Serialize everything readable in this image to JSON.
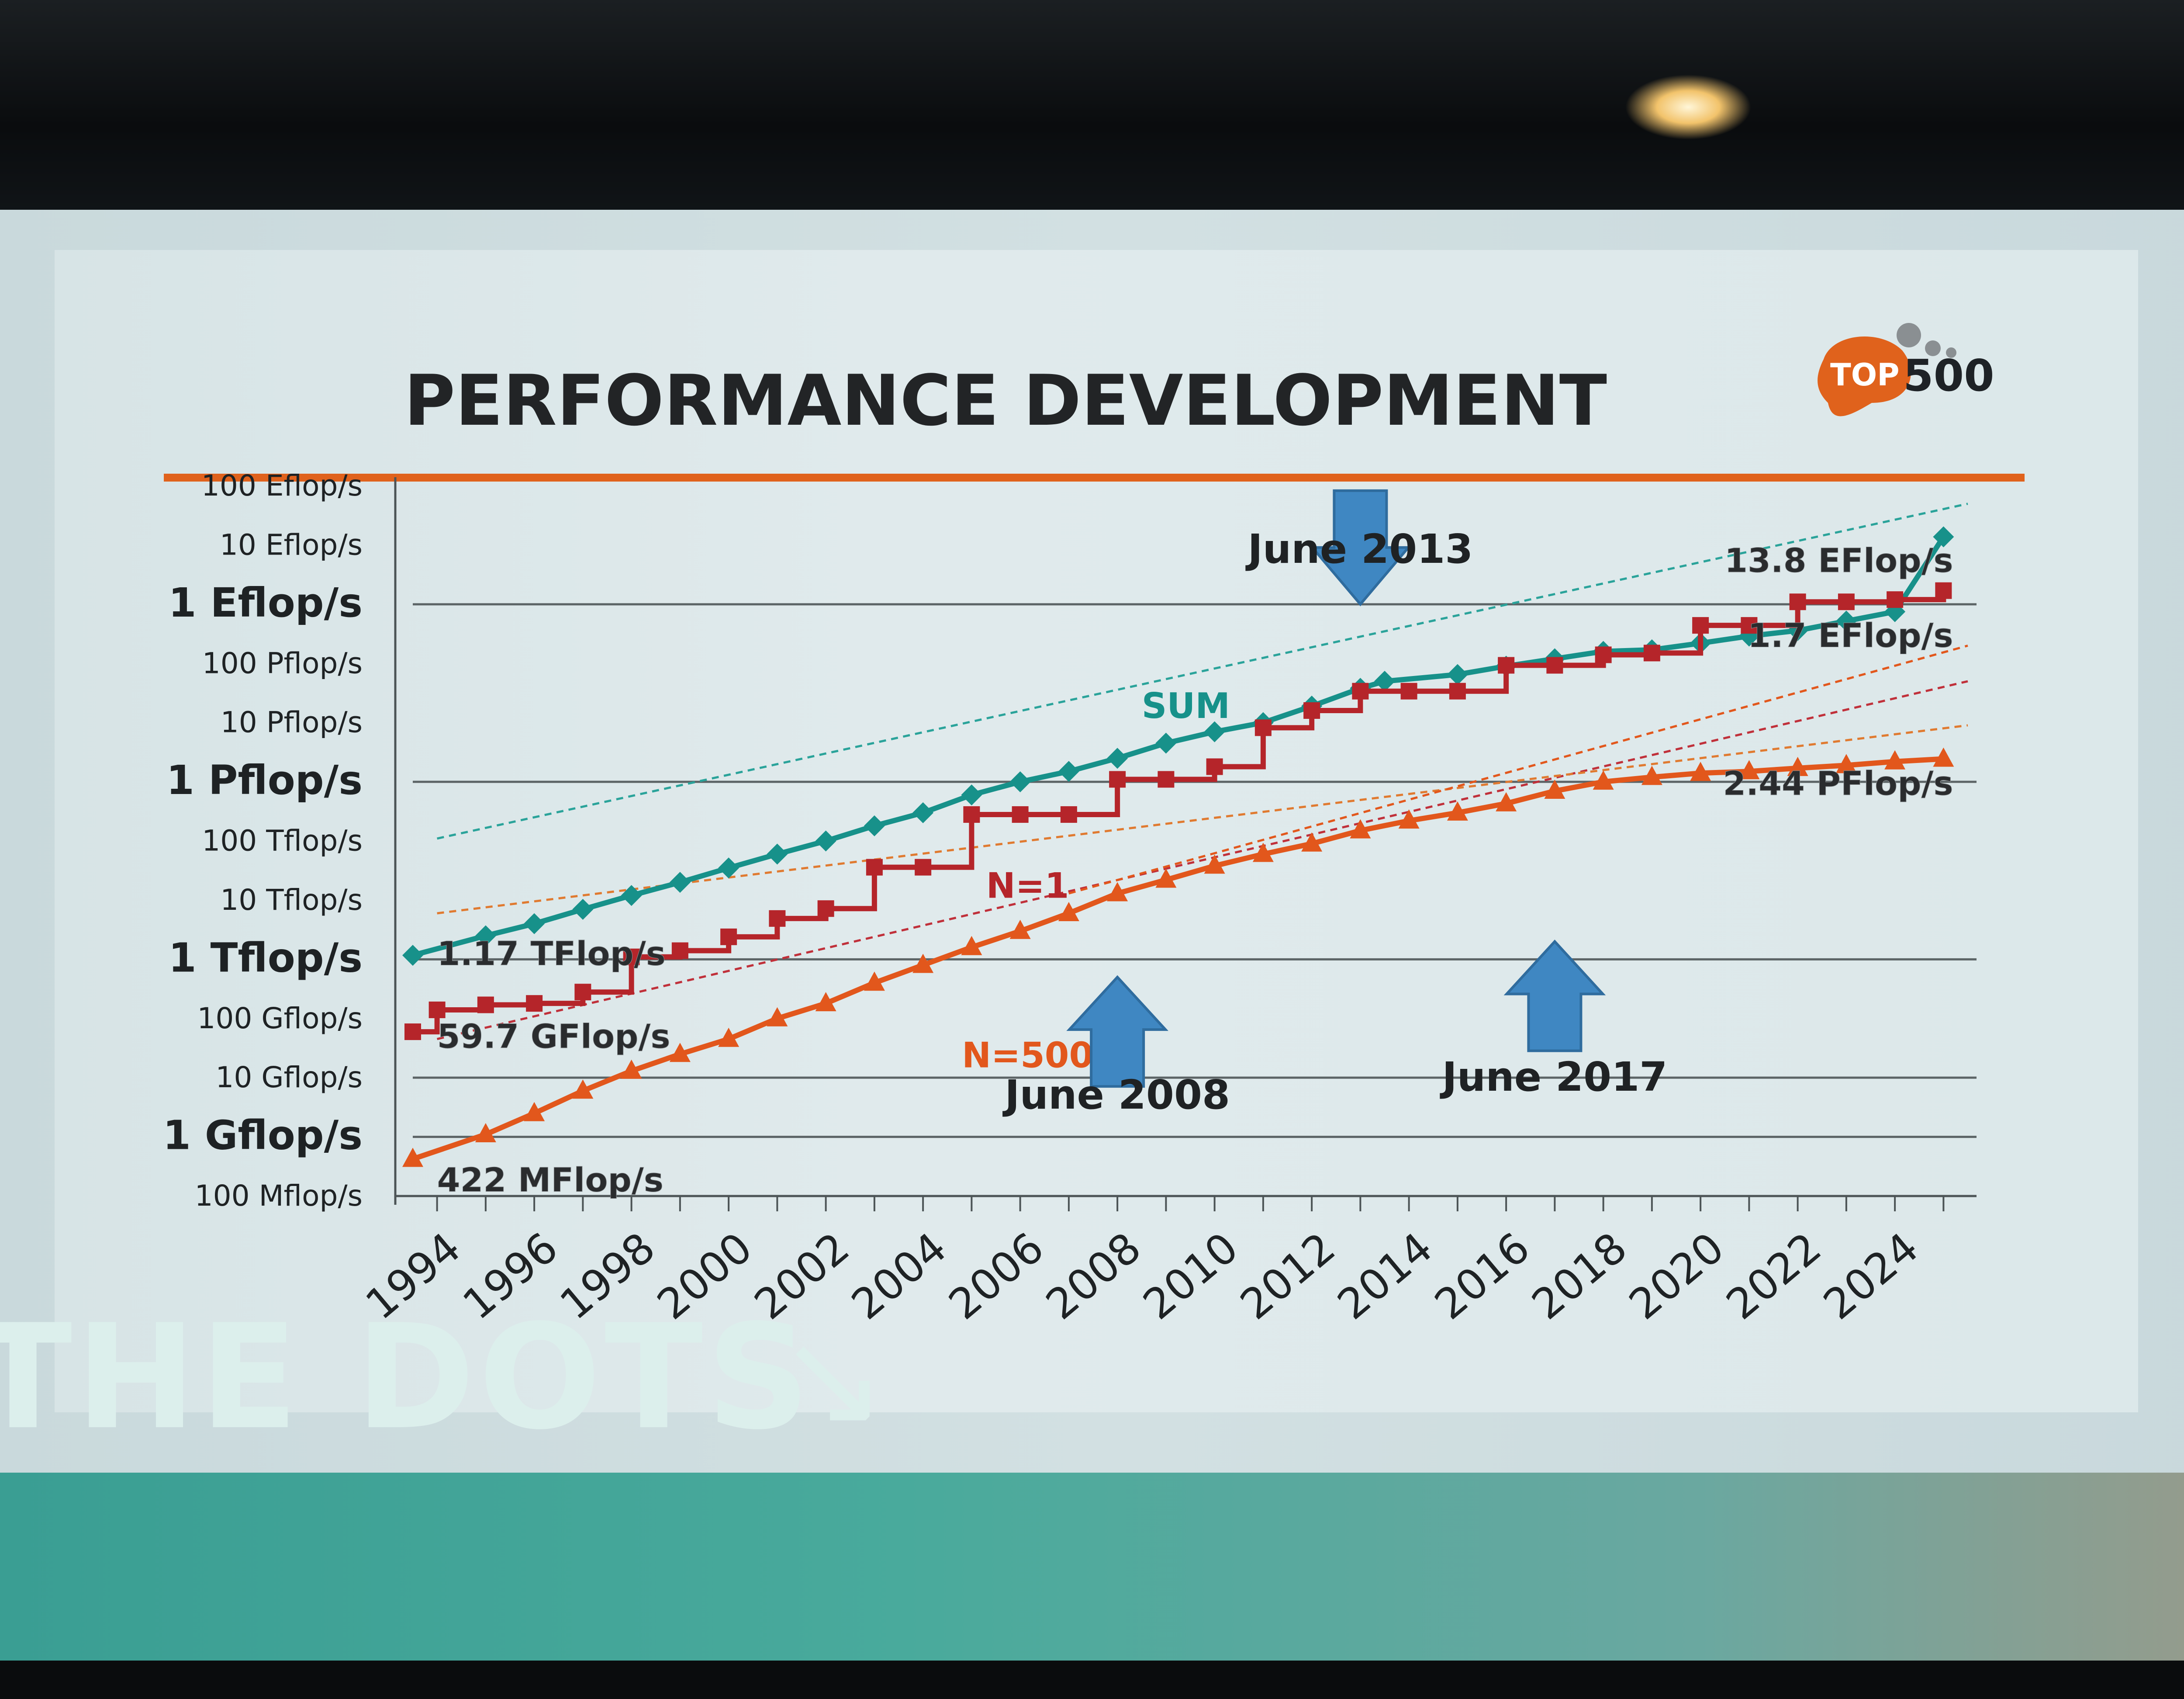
{
  "slide": {
    "title": "PERFORMANCE DEVELOPMENT",
    "logo": {
      "prefix": "TOP",
      "suffix": "500",
      "color": "#e0621c"
    },
    "accent_rule_color": "#e0621c"
  },
  "band": {
    "text": "THE DOTS",
    "arrow": "↘"
  },
  "chart_data": {
    "type": "line",
    "title": "PERFORMANCE DEVELOPMENT",
    "xlabel": "",
    "ylabel": "",
    "y_scale": "log",
    "ylim": [
      "100 Mflop/s",
      "100 Eflop/s"
    ],
    "xlim": [
      1993.5,
      2025.5
    ],
    "grid": "horizontal",
    "x_ticks": [
      "1994",
      "1996",
      "1998",
      "2000",
      "2002",
      "2004",
      "2006",
      "2008",
      "2010",
      "2012",
      "2014",
      "2016",
      "2018",
      "2020",
      "2022",
      "2024"
    ],
    "y_ticks": [
      {
        "label": "100 Mflop/s",
        "value": 100000000.0,
        "bold": false
      },
      {
        "label": "1 Gflop/s",
        "value": 1000000000.0,
        "bold": true
      },
      {
        "label": "10 Gflop/s",
        "value": 10000000000.0,
        "bold": false
      },
      {
        "label": "100 Gflop/s",
        "value": 100000000000.0,
        "bold": false
      },
      {
        "label": "1 Tflop/s",
        "value": 1000000000000.0,
        "bold": true
      },
      {
        "label": "10 Tflop/s",
        "value": 10000000000000.0,
        "bold": false
      },
      {
        "label": "100 Tflop/s",
        "value": 100000000000000.0,
        "bold": false
      },
      {
        "label": "1 Pflop/s",
        "value": 1000000000000000.0,
        "bold": true
      },
      {
        "label": "10 Pflop/s",
        "value": 1e+16,
        "bold": false
      },
      {
        "label": "100 Pflop/s",
        "value": 1e+17,
        "bold": false
      },
      {
        "label": "1 Eflop/s",
        "value": 1e+18,
        "bold": true
      },
      {
        "label": "10 Eflop/s",
        "value": 1e+19,
        "bold": false
      },
      {
        "label": "100 Eflop/s",
        "value": 1e+20,
        "bold": false
      }
    ],
    "series": [
      {
        "name": "SUM",
        "color": "#17918a",
        "marker": "diamond",
        "unit": "flop/s",
        "x": [
          1993.5,
          1995,
          1996,
          1997,
          1998,
          1999,
          2000,
          2001,
          2002,
          2003,
          2004,
          2005,
          2006,
          2007,
          2008,
          2009,
          2010,
          2011,
          2012,
          2013,
          2013.5,
          2015,
          2016,
          2017,
          2018,
          2019,
          2020,
          2021,
          2022,
          2023,
          2024,
          2025
        ],
        "y": [
          1170000000000.0,
          2500000000000.0,
          4000000000000.0,
          7000000000000.0,
          12000000000000.0,
          20000000000000.0,
          35000000000000.0,
          60000000000000.0,
          100000000000000.0,
          180000000000000.0,
          300000000000000.0,
          600000000000000.0,
          1000000000000000.0,
          1500000000000000.0,
          2500000000000000.0,
          4500000000000000.0,
          7000000000000000.0,
          1e+16,
          1.9e+16,
          3.8e+16,
          5e+16,
          6.5e+16,
          9e+16,
          1.2e+17,
          1.6e+17,
          1.7e+17,
          2.2e+17,
          2.9e+17,
          3.6e+17,
          5.2e+17,
          7.5e+17,
          1.38e+19
        ]
      },
      {
        "name": "N=1",
        "color": "#b5252a",
        "marker": "square",
        "unit": "flop/s",
        "x": [
          1993.5,
          1994,
          1995,
          1996,
          1997,
          1998,
          1999,
          2000,
          2001,
          2002,
          2003,
          2004,
          2005,
          2006,
          2007,
          2008,
          2009,
          2010,
          2011,
          2012,
          2013,
          2014,
          2015,
          2016,
          2017,
          2018,
          2019,
          2020,
          2021,
          2022,
          2023,
          2024,
          2025
        ],
        "y": [
          59700000000.0,
          140000000000.0,
          170000000000.0,
          180000000000.0,
          280000000000.0,
          1100000000000.0,
          1400000000000.0,
          2400000000000.0,
          4900000000000.0,
          7200000000000.0,
          36000000000000.0,
          36000000000000.0,
          280000000000000.0,
          280000000000000.0,
          280000000000000.0,
          1100000000000000.0,
          1100000000000000.0,
          1800000000000000.0,
          8200000000000000.0,
          1.6e+16,
          3.4e+16,
          3.4e+16,
          3.4e+16,
          9.3e+16,
          9.3e+16,
          1.4e+17,
          1.5e+17,
          4.4e+17,
          4.4e+17,
          1.1e+18,
          1.1e+18,
          1.2e+18,
          1.7e+18
        ]
      },
      {
        "name": "N=500",
        "color": "#e2571c",
        "marker": "triangle",
        "unit": "flop/s",
        "x": [
          1993.5,
          1995,
          1996,
          1997,
          1998,
          1999,
          2000,
          2001,
          2002,
          2003,
          2004,
          2005,
          2006,
          2007,
          2008,
          2009,
          2010,
          2011,
          2012,
          2013,
          2014,
          2015,
          2016,
          2017,
          2018,
          2019,
          2020,
          2021,
          2022,
          2023,
          2024,
          2025
        ],
        "y": [
          422000000.0,
          1100000000.0,
          2500000000.0,
          6000000000.0,
          13000000000.0,
          25000000000.0,
          45000000000.0,
          100000000000.0,
          180000000000.0,
          400000000000.0,
          800000000000.0,
          1600000000000.0,
          3000000000000.0,
          6000000000000.0,
          13000000000000.0,
          22000000000000.0,
          38000000000000.0,
          60000000000000.0,
          90000000000000.0,
          150000000000000.0,
          220000000000000.0,
          300000000000000.0,
          430000000000000.0,
          700000000000000.0,
          1000000000000000.0,
          1200000000000000.0,
          1400000000000000.0,
          1500000000000000.0,
          1700000000000000.0,
          1900000000000000.0,
          2200000000000000.0,
          2440000000000000.0
        ]
      }
    ],
    "trend_lines": [
      {
        "series": "SUM",
        "color": "#2aa39a",
        "from": [
          1994,
          110000000000000.0
        ],
        "to": [
          2025.5,
          5e+19
        ]
      },
      {
        "series": "N=1",
        "color": "#c0303a",
        "from": [
          1994,
          45000000000.0
        ],
        "to": [
          2025.5,
          5e+16
        ]
      },
      {
        "series": "N=1",
        "color": "#e07a30",
        "from": [
          1994,
          6000000000000.0
        ],
        "to": [
          2025.5,
          9000000000000000.0
        ]
      },
      {
        "series": "N=500",
        "color": "#e2571c",
        "from": [
          2007,
          13000000000000.0
        ],
        "to": [
          2025.5,
          2e+17
        ]
      }
    ],
    "annotations": {
      "series_labels": [
        {
          "text": "SUM",
          "color": "#17918a",
          "x": 2008.5,
          "y": 1.2e+16
        },
        {
          "text": "N=1",
          "color": "#b5252a",
          "x": 2005.3,
          "y": 11000000000000.0
        },
        {
          "text": "N=500",
          "color": "#e2571c",
          "x": 2004.8,
          "y": 15000000000.0
        }
      ],
      "start_values": [
        {
          "text": "1.17 TFlop/s",
          "x": 1994,
          "y": 800000000000.0
        },
        {
          "text": "59.7 GFlop/s",
          "x": 1994,
          "y": 32000000000.0
        },
        {
          "text": "422 MFlop/s",
          "x": 1994,
          "y": 120000000.0
        }
      ],
      "end_values": [
        {
          "text": "13.8 EFlop/s",
          "x": 2025.2,
          "y": 3.5e+18
        },
        {
          "text": "1.7 EFlop/s",
          "x": 2025.2,
          "y": 1.9e+17
        },
        {
          "text": "2.44 PFlop/s",
          "x": 2025.2,
          "y": 600000000000000.0
        }
      ],
      "events": [
        {
          "text": "June 2013",
          "x": 2013,
          "direction": "down",
          "y_arrow": 1e+18,
          "y_label": 5e+18
        },
        {
          "text": "June 2008",
          "x": 2008,
          "direction": "up",
          "y_arrow": 500000000000.0,
          "y_label": 3000000000.0
        },
        {
          "text": "June 2017",
          "x": 2017,
          "direction": "up",
          "y_arrow": 2000000000000.0,
          "y_label": 6000000000.0
        }
      ]
    }
  }
}
